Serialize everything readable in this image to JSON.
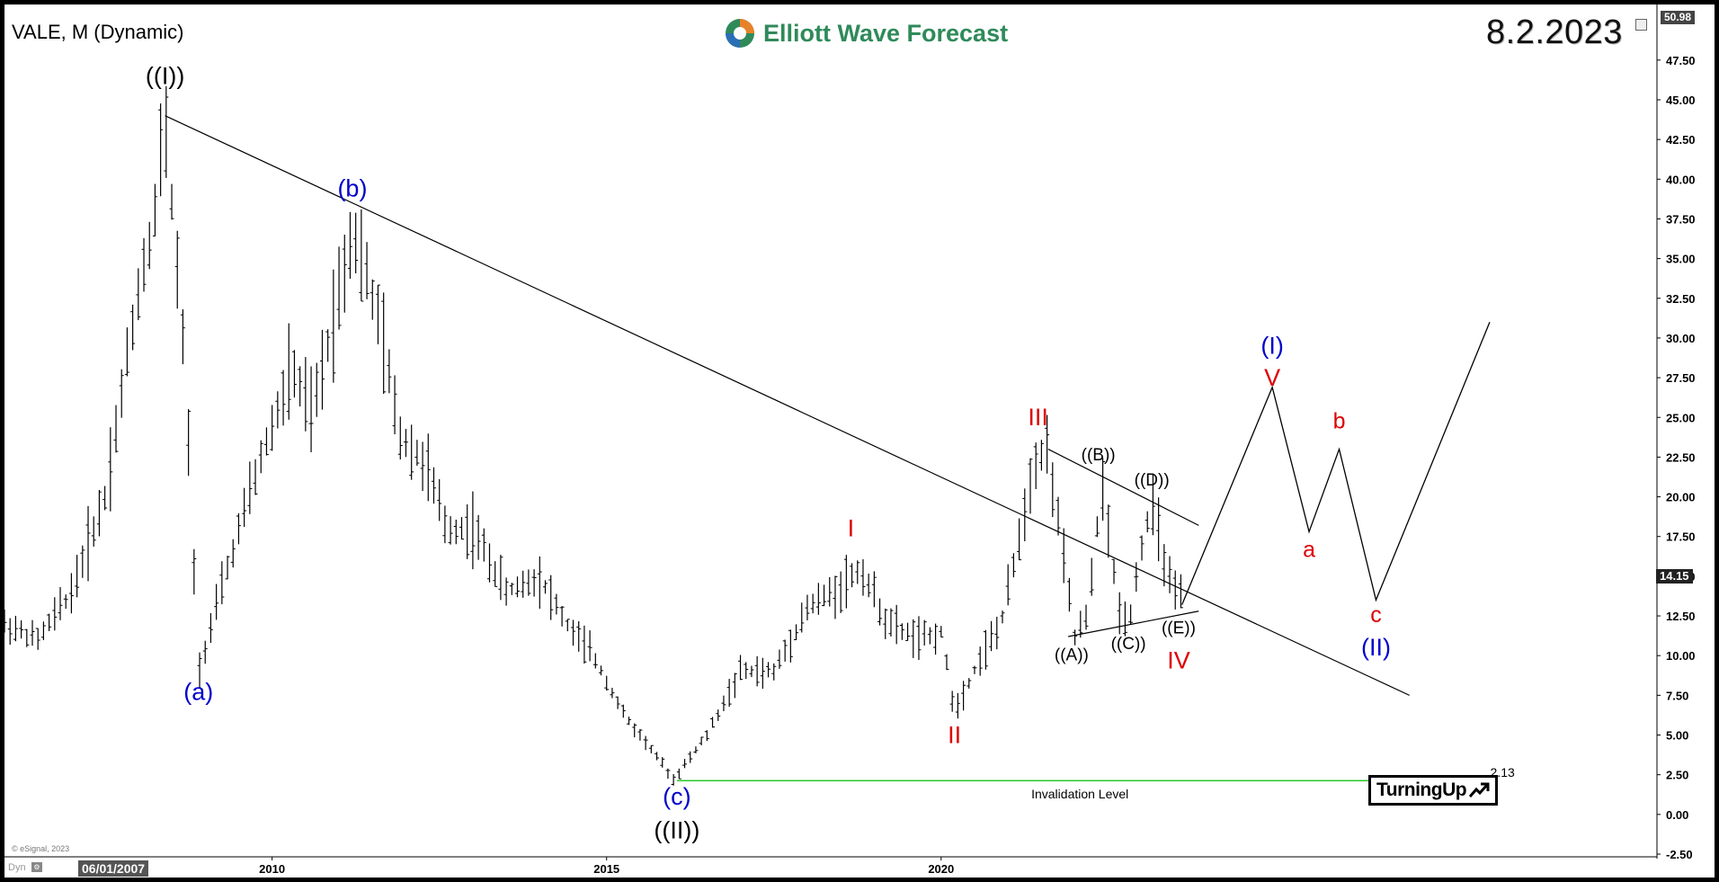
{
  "header": {
    "symbol_title": "VALE, M (Dynamic)",
    "logo_text": "Elliott Wave Forecast",
    "date_stamp": "8.2.2023",
    "top_price": "50.98"
  },
  "footer": {
    "copyright": "© eSignal, 2023",
    "dyn_label": "Dyn",
    "start_date": "06/01/2007"
  },
  "last_price": "14.15",
  "invalidation": {
    "label": "Invalidation Level",
    "value": "2.13"
  },
  "badge": {
    "text": "TurningUp"
  },
  "colors": {
    "blue": "#0000cc",
    "red": "#dd0000",
    "black": "#000000",
    "green": "#00bb00",
    "logo_green": "#2f8a5a"
  },
  "chart_data": {
    "type": "bar",
    "ylim": [
      -2.5,
      51
    ],
    "yticks": [
      "-2.50",
      "0.00",
      "2.50",
      "5.00",
      "7.50",
      "10.00",
      "12.50",
      "15.00",
      "17.50",
      "20.00",
      "22.50",
      "25.00",
      "27.50",
      "30.00",
      "32.50",
      "35.00",
      "37.50",
      "40.00",
      "42.50",
      "45.00",
      "47.50"
    ],
    "xticks": [
      {
        "label": "2010",
        "x": 2010.0
      },
      {
        "label": "2015",
        "x": 2015.0
      },
      {
        "label": "2020",
        "x": 2020.0
      }
    ],
    "xlim": [
      2006.0,
      2030.7
    ],
    "price_path": [
      [
        2006.0,
        12.0
      ],
      [
        2006.5,
        11.0
      ],
      [
        2007.0,
        14.0
      ],
      [
        2007.5,
        20.0
      ],
      [
        2008.0,
        33.0
      ],
      [
        2008.25,
        38.0
      ],
      [
        2008.4,
        44.0
      ],
      [
        2008.7,
        28.0
      ],
      [
        2008.9,
        9.0
      ],
      [
        2009.3,
        15.0
      ],
      [
        2009.8,
        22.0
      ],
      [
        2010.3,
        28.0
      ],
      [
        2010.6,
        25.0
      ],
      [
        2011.0,
        33.0
      ],
      [
        2011.2,
        37.0
      ],
      [
        2011.6,
        31.0
      ],
      [
        2011.9,
        24.0
      ],
      [
        2012.3,
        22.0
      ],
      [
        2012.6,
        18.0
      ],
      [
        2013.0,
        18.0
      ],
      [
        2013.5,
        14.0
      ],
      [
        2014.0,
        15.0
      ],
      [
        2014.4,
        12.0
      ],
      [
        2014.8,
        10.0
      ],
      [
        2015.3,
        6.0
      ],
      [
        2015.6,
        4.5
      ],
      [
        2016.0,
        2.2
      ],
      [
        2016.5,
        5.0
      ],
      [
        2017.0,
        9.0
      ],
      [
        2017.5,
        9.0
      ],
      [
        2018.0,
        13.0
      ],
      [
        2018.4,
        14.0
      ],
      [
        2018.8,
        15.5
      ],
      [
        2019.2,
        12.0
      ],
      [
        2019.7,
        11.0
      ],
      [
        2020.0,
        11.5
      ],
      [
        2020.2,
        6.5
      ],
      [
        2020.6,
        10.0
      ],
      [
        2020.9,
        12.0
      ],
      [
        2021.1,
        16.0
      ],
      [
        2021.4,
        22.5
      ],
      [
        2021.6,
        23.0
      ],
      [
        2021.8,
        17.0
      ],
      [
        2022.0,
        11.2
      ],
      [
        2022.2,
        12.5
      ],
      [
        2022.4,
        21.0
      ],
      [
        2022.65,
        13.0
      ],
      [
        2022.8,
        12.0
      ],
      [
        2023.0,
        17.0
      ],
      [
        2023.15,
        19.5
      ],
      [
        2023.4,
        15.0
      ],
      [
        2023.55,
        13.0
      ],
      [
        2023.6,
        14.15
      ]
    ],
    "trendlines": [
      {
        "from": [
          2008.4,
          44.0
        ],
        "to": [
          2027.0,
          7.5
        ],
        "color": "black"
      },
      {
        "from": [
          2021.6,
          23.0
        ],
        "to": [
          2023.85,
          18.2
        ],
        "color": "black"
      },
      {
        "from": [
          2021.9,
          11.2
        ],
        "to": [
          2023.85,
          12.8
        ],
        "color": "black"
      },
      {
        "from": [
          2016.05,
          2.13
        ],
        "to": [
          2028.1,
          2.13
        ],
        "color": "green"
      }
    ],
    "projection": [
      [
        2023.6,
        13.2
      ],
      [
        2024.95,
        26.9
      ],
      [
        2025.5,
        17.8
      ],
      [
        2025.95,
        23.0
      ],
      [
        2026.5,
        13.5
      ],
      [
        2028.2,
        31.0
      ]
    ],
    "labels": [
      {
        "text": "((I))",
        "x": 2008.4,
        "y": 46.0,
        "color": "black",
        "size": 27
      },
      {
        "text": "(a)",
        "x": 2008.9,
        "y": 7.2,
        "color": "blue",
        "size": 27
      },
      {
        "text": "(b)",
        "x": 2011.2,
        "y": 38.9,
        "color": "blue",
        "size": 27
      },
      {
        "text": "(c)",
        "x": 2016.05,
        "y": 0.6,
        "color": "blue",
        "size": 27
      },
      {
        "text": "((II))",
        "x": 2016.05,
        "y": -1.5,
        "color": "black",
        "size": 27
      },
      {
        "text": "I",
        "x": 2018.65,
        "y": 17.5,
        "color": "red",
        "size": 27
      },
      {
        "text": "II",
        "x": 2020.2,
        "y": 4.5,
        "color": "red",
        "size": 27
      },
      {
        "text": "III",
        "x": 2021.45,
        "y": 24.5,
        "color": "red",
        "size": 27
      },
      {
        "text": "((A))",
        "x": 2021.95,
        "y": 9.7,
        "color": "black",
        "size": 19
      },
      {
        "text": "((B))",
        "x": 2022.35,
        "y": 22.3,
        "color": "black",
        "size": 19
      },
      {
        "text": "((C))",
        "x": 2022.8,
        "y": 10.4,
        "color": "black",
        "size": 19
      },
      {
        "text": "((D))",
        "x": 2023.15,
        "y": 20.7,
        "color": "black",
        "size": 19
      },
      {
        "text": "((E))",
        "x": 2023.55,
        "y": 11.4,
        "color": "black",
        "size": 19
      },
      {
        "text": "IV",
        "x": 2023.55,
        "y": 9.2,
        "color": "red",
        "size": 27
      },
      {
        "text": "(I)",
        "x": 2024.95,
        "y": 29.0,
        "color": "blue",
        "size": 27
      },
      {
        "text": "V",
        "x": 2024.95,
        "y": 27.0,
        "color": "red",
        "size": 27
      },
      {
        "text": "a",
        "x": 2025.5,
        "y": 16.2,
        "color": "red",
        "size": 25
      },
      {
        "text": "b",
        "x": 2025.95,
        "y": 24.3,
        "color": "red",
        "size": 25
      },
      {
        "text": "c",
        "x": 2026.5,
        "y": 12.1,
        "color": "red",
        "size": 25
      },
      {
        "text": "(II)",
        "x": 2026.5,
        "y": 10.0,
        "color": "blue",
        "size": 27
      }
    ]
  }
}
